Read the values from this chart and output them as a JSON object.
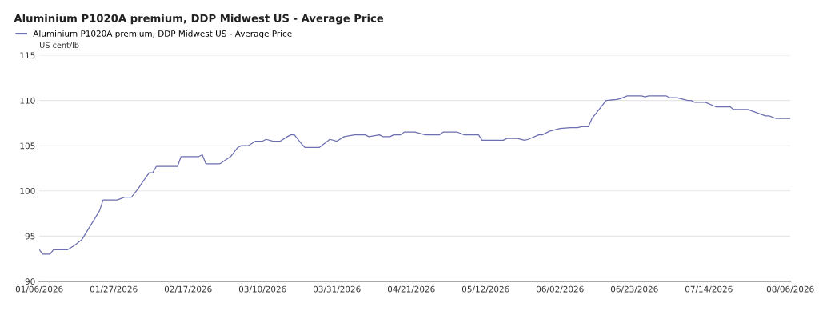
{
  "chart_data": {
    "type": "line",
    "title": "Aluminium P1020A premium, DDP Midwest US - Average Price",
    "ylabel": "US cent/lb",
    "series": [
      {
        "name": "Aluminium P1020A premium, DDP Midwest US - Average Price",
        "color": "#6c6fb0",
        "x": [
          "2026-01-06",
          "2026-01-07",
          "2026-01-09",
          "2026-01-10",
          "2026-01-14",
          "2026-01-16",
          "2026-01-18",
          "2026-01-23",
          "2026-01-24",
          "2026-01-28",
          "2026-01-30",
          "2026-02-01",
          "2026-02-03",
          "2026-02-04",
          "2026-02-06",
          "2026-02-07",
          "2026-02-08",
          "2026-02-14",
          "2026-02-15",
          "2026-02-20",
          "2026-02-21",
          "2026-02-22",
          "2026-02-26",
          "2026-03-01",
          "2026-03-03",
          "2026-03-04",
          "2026-03-06",
          "2026-03-08",
          "2026-03-10",
          "2026-03-11",
          "2026-03-13",
          "2026-03-15",
          "2026-03-17",
          "2026-03-18",
          "2026-03-19",
          "2026-03-21",
          "2026-03-22",
          "2026-03-26",
          "2026-03-29",
          "2026-03-31",
          "2026-04-02",
          "2026-04-05",
          "2026-04-08",
          "2026-04-09",
          "2026-04-12",
          "2026-04-13",
          "2026-04-15",
          "2026-04-16",
          "2026-04-18",
          "2026-04-19",
          "2026-04-22",
          "2026-04-25",
          "2026-04-29",
          "2026-04-30",
          "2026-05-04",
          "2026-05-06",
          "2026-05-10",
          "2026-05-11",
          "2026-05-17",
          "2026-05-18",
          "2026-05-21",
          "2026-05-23",
          "2026-05-24",
          "2026-05-27",
          "2026-05-28",
          "2026-05-30",
          "2026-06-02",
          "2026-06-05",
          "2026-06-07",
          "2026-06-08",
          "2026-06-10",
          "2026-06-11",
          "2026-06-12",
          "2026-06-14",
          "2026-06-15",
          "2026-06-18",
          "2026-06-19",
          "2026-06-21",
          "2026-06-25",
          "2026-06-26",
          "2026-06-27",
          "2026-07-02",
          "2026-07-03",
          "2026-07-05",
          "2026-07-08",
          "2026-07-09",
          "2026-07-10",
          "2026-07-13",
          "2026-07-16",
          "2026-07-20",
          "2026-07-21",
          "2026-07-25",
          "2026-07-30",
          "2026-07-31",
          "2026-08-02",
          "2026-08-06"
        ],
        "values": [
          93.5,
          93.0,
          93.0,
          93.5,
          93.5,
          94.0,
          94.6,
          97.8,
          99.0,
          99.0,
          99.3,
          99.3,
          100.3,
          100.9,
          102.0,
          102.0,
          102.7,
          102.7,
          103.8,
          103.8,
          104.0,
          103.0,
          103.0,
          103.8,
          104.8,
          105.0,
          105.0,
          105.5,
          105.5,
          105.7,
          105.5,
          105.5,
          106.0,
          106.2,
          106.2,
          105.2,
          104.8,
          104.8,
          105.7,
          105.5,
          106.0,
          106.2,
          106.2,
          106.0,
          106.2,
          106.0,
          106.0,
          106.2,
          106.2,
          106.5,
          106.5,
          106.2,
          106.2,
          106.5,
          106.5,
          106.2,
          106.2,
          105.6,
          105.6,
          105.8,
          105.8,
          105.6,
          105.7,
          106.2,
          106.2,
          106.6,
          106.9,
          107.0,
          107.0,
          107.1,
          107.1,
          108.0,
          108.5,
          109.5,
          110.0,
          110.1,
          110.2,
          110.5,
          110.5,
          110.4,
          110.5,
          110.5,
          110.3,
          110.3,
          110.0,
          110.0,
          109.8,
          109.8,
          109.3,
          109.3,
          109.0,
          109.0,
          108.3,
          108.3,
          108.0,
          108.0
        ]
      }
    ],
    "xlim": [
      "2026-01-06",
      "2026-08-06"
    ],
    "xticks": [
      {
        "value": "2026-01-06",
        "label": "01/06/2026"
      },
      {
        "value": "2026-01-27",
        "label": "01/27/2026"
      },
      {
        "value": "2026-02-17",
        "label": "02/17/2026"
      },
      {
        "value": "2026-03-10",
        "label": "03/10/2026"
      },
      {
        "value": "2026-03-31",
        "label": "03/31/2026"
      },
      {
        "value": "2026-04-21",
        "label": "04/21/2026"
      },
      {
        "value": "2026-05-12",
        "label": "05/12/2026"
      },
      {
        "value": "2026-06-02",
        "label": "06/02/2026"
      },
      {
        "value": "2026-06-23",
        "label": "06/23/2026"
      },
      {
        "value": "2026-07-14",
        "label": "07/14/2026"
      },
      {
        "value": "2026-08-06",
        "label": "08/06/2026"
      }
    ],
    "ylim": [
      90,
      115
    ],
    "yticks": [
      90,
      95,
      100,
      105,
      110,
      115
    ],
    "grid": "y",
    "legend": "top left",
    "marker": "none",
    "line_style": "solid"
  }
}
